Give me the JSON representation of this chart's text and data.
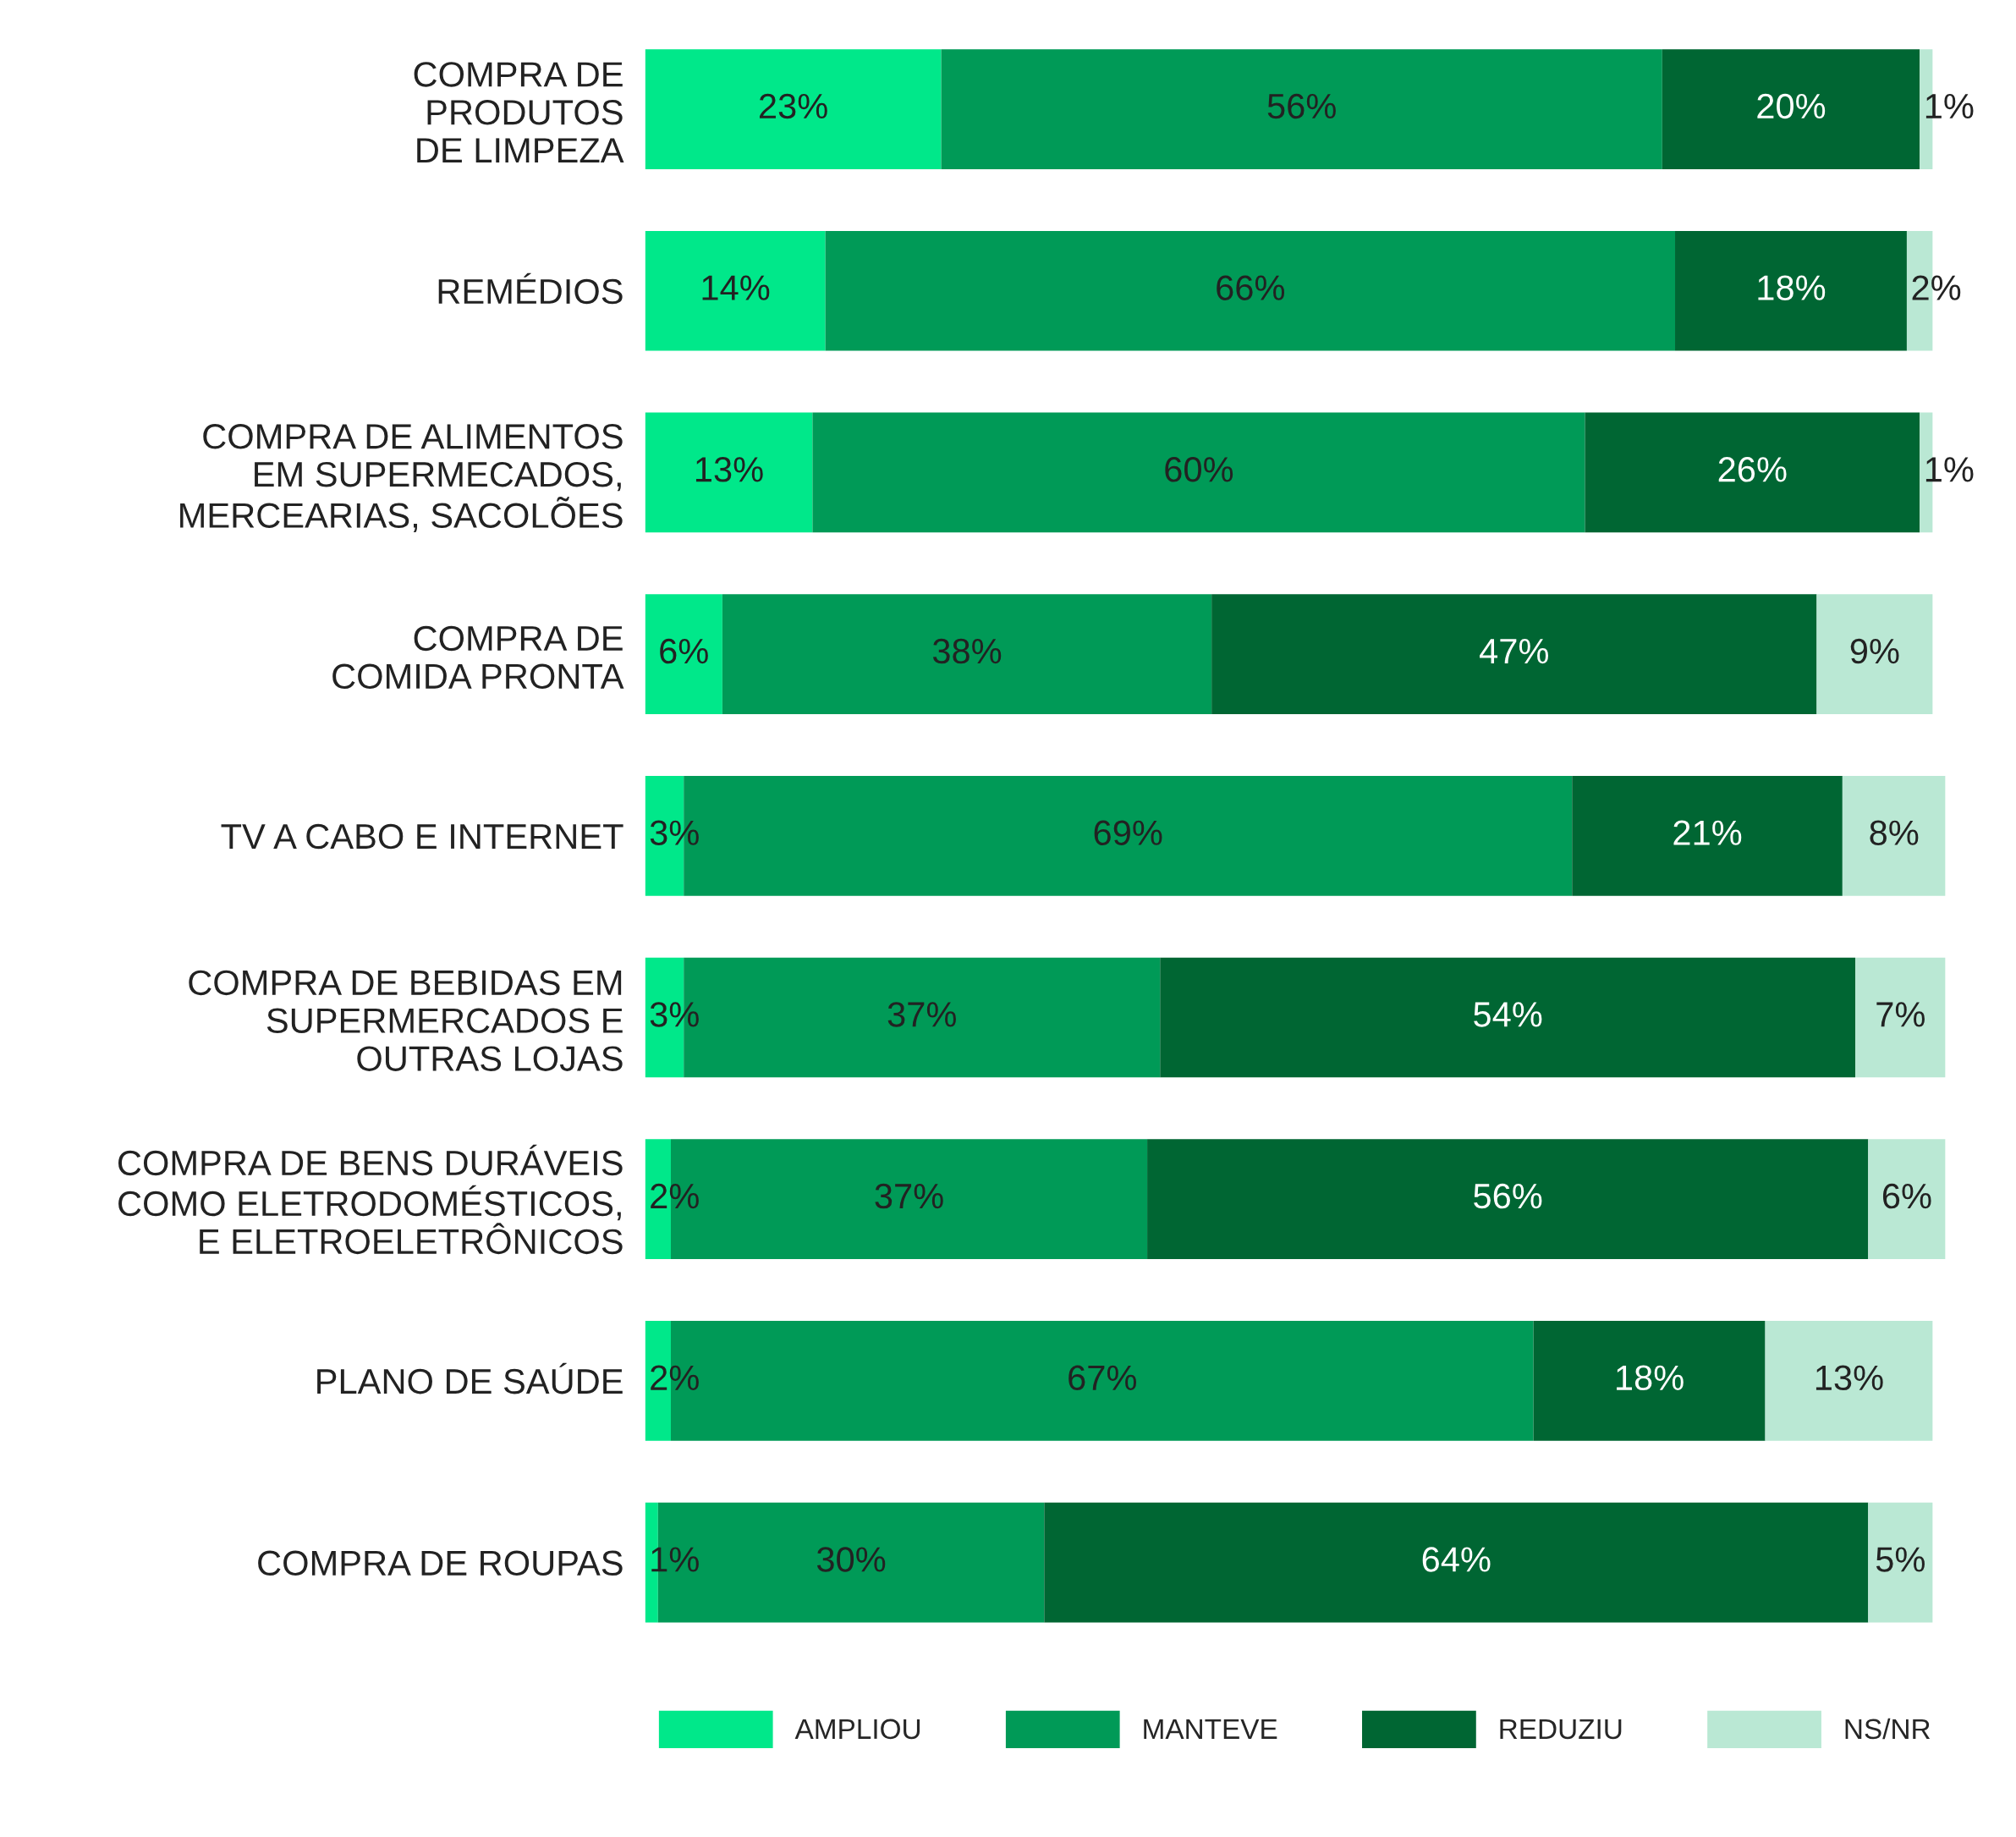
{
  "chart_data": {
    "type": "bar",
    "orientation": "horizontal",
    "stacked": true,
    "legend": "bottom",
    "grid": false,
    "tick_labels": "y",
    "categories": [
      "COMPRA DE\nPRODUTOS\nDE LIMPEZA",
      "REMÉDIOS",
      "COMPRA DE ALIMENTOS\nEM SUPERMECADOS,\nMERCEARIAS, SACOLÕES",
      "COMPRA DE\nCOMIDA PRONTA",
      "TV A CABO E INTERNET",
      "COMPRA DE BEBIDAS EM\nSUPERMERCADOS E\nOUTRAS LOJAS",
      "COMPRA DE BENS DURÁVEIS\nCOMO ELETRODOMÉSTICOS,\nE ELETROELETRÔNICOS",
      "PLANO DE SAÚDE",
      "COMPRA DE ROUPAS"
    ],
    "series": [
      {
        "name": "AMPLIOU",
        "color": "#00e88a",
        "values": [
          23,
          14,
          13,
          6,
          3,
          3,
          2,
          2,
          1
        ],
        "value_labels": [
          "23%",
          "14%",
          "13%",
          "6%",
          "3%",
          "3%",
          "2%",
          "2%",
          "1%"
        ]
      },
      {
        "name": "MANTEVE",
        "color": "#009a57",
        "values": [
          56,
          66,
          60,
          38,
          69,
          37,
          37,
          67,
          30
        ],
        "value_labels": [
          "56%",
          "66%",
          "60%",
          "38%",
          "69%",
          "37%",
          "37%",
          "67%",
          "30%"
        ]
      },
      {
        "name": "REDUZIU",
        "color": "#006633",
        "values": [
          20,
          18,
          26,
          47,
          21,
          54,
          56,
          18,
          64
        ],
        "value_labels": [
          "20%",
          "18%",
          "26%",
          "47%",
          "21%",
          "54%",
          "56%",
          "18%",
          "64%"
        ]
      },
      {
        "name": "NS/NR",
        "color": "#bae8d4",
        "values": [
          1,
          2,
          1,
          9,
          8,
          7,
          6,
          13,
          5
        ],
        "value_labels": [
          "1%",
          "2%",
          "1%",
          "9%",
          "8%",
          "7%",
          "6%",
          "13%",
          "5%"
        ]
      }
    ]
  }
}
